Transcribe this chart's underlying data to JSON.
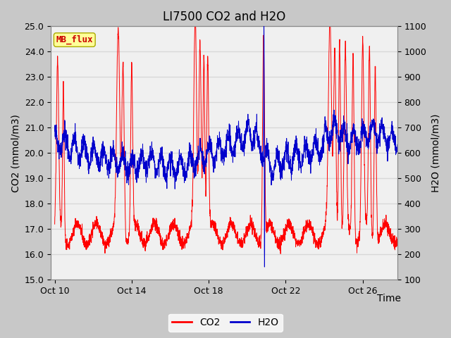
{
  "title": "LI7500 CO2 and H2O",
  "xlabel": "Time",
  "ylabel_left": "CO2 (mmol/m3)",
  "ylabel_right": "H2O (mmol/m3)",
  "co2_ylim": [
    15.0,
    25.0
  ],
  "h2o_ylim": [
    100,
    1100
  ],
  "co2_yticks": [
    15.0,
    16.0,
    17.0,
    18.0,
    19.0,
    20.0,
    21.0,
    22.0,
    23.0,
    24.0,
    25.0
  ],
  "h2o_yticks": [
    100,
    200,
    300,
    400,
    500,
    600,
    700,
    800,
    900,
    1000,
    1100
  ],
  "xtick_labels": [
    "Oct 10",
    "Oct 14",
    "Oct 18",
    "Oct 22",
    "Oct 26"
  ],
  "xtick_days": [
    10,
    14,
    18,
    22,
    26
  ],
  "xlim": [
    9.8,
    27.8
  ],
  "co2_color": "#ff0000",
  "h2o_color": "#0000cc",
  "fig_bg_color": "#c8c8c8",
  "plot_bg_color": "#f0f0f0",
  "grid_color": "#d8d8d8",
  "label_box_color": "#ffff99",
  "label_box_text": "MB_flux",
  "label_box_text_color": "#cc0000",
  "legend_co2": "CO2",
  "legend_h2o": "H2O",
  "title_fontsize": 12,
  "axis_fontsize": 10,
  "tick_fontsize": 9,
  "legend_fontsize": 10
}
